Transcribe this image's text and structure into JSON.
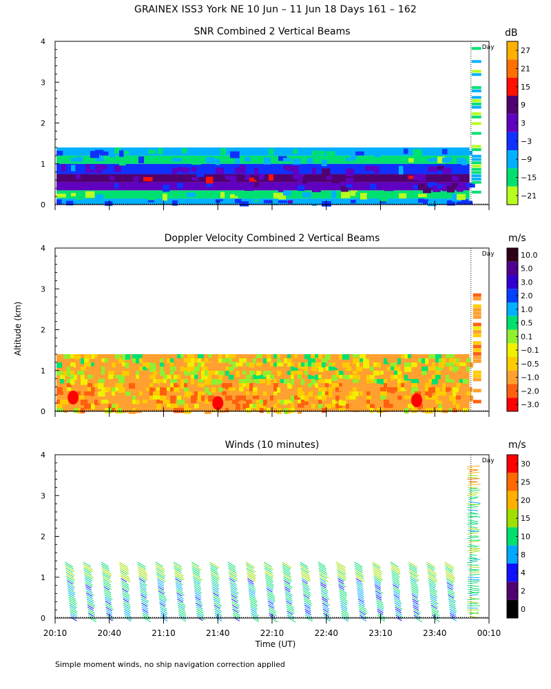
{
  "title": "GRAINEX ISS3 York NE  10 Jun – 11 Jun 18 Days 161 – 162",
  "footnote": "Simple moment winds, no ship navigation correction applied",
  "y_axis_label": "Altitude (km)",
  "x_axis_label": "Time (UT)",
  "day_marker_label": "Day",
  "colors": {
    "axis": "#000000"
  },
  "chart_data": [
    {
      "type": "heatmap",
      "title": "SNR Combined 2 Vertical Beams",
      "ylabel": "Altitude (km)",
      "ylim": [
        0,
        4
      ],
      "yticks": [
        "0",
        "1",
        "2",
        "3",
        "4"
      ],
      "xlim": [
        "20:10",
        "00:10"
      ],
      "day_marker_time": "00:00",
      "colorbar": {
        "unit": "dB",
        "labels": [
          "27",
          "21",
          "15",
          "9",
          "3",
          "−3",
          "−9",
          "−15",
          "−21"
        ],
        "colors": [
          "#ffb000",
          "#ff7000",
          "#ff1000",
          "#500070",
          "#6000c0",
          "#1030ff",
          "#00b0ff",
          "#00e070",
          "#b8ff20"
        ]
      },
      "data_top_km": 1.4,
      "layers_km": [
        {
          "from": 0.0,
          "to": 0.15,
          "db": -6
        },
        {
          "from": 0.15,
          "to": 0.35,
          "db": -15
        },
        {
          "from": 0.35,
          "to": 0.55,
          "db": 3
        },
        {
          "from": 0.55,
          "to": 0.75,
          "db": 7
        },
        {
          "from": 0.75,
          "to": 1.0,
          "db": 0
        },
        {
          "from": 1.0,
          "to": 1.2,
          "db": -12
        },
        {
          "from": 1.2,
          "to": 1.4,
          "db": -8
        }
      ]
    },
    {
      "type": "heatmap",
      "title": "Doppler Velocity Combined 2 Vertical Beams",
      "ylabel": "Altitude (km)",
      "ylim": [
        0,
        4
      ],
      "yticks": [
        "0",
        "1",
        "2",
        "3",
        "4"
      ],
      "xlim": [
        "20:10",
        "00:10"
      ],
      "day_marker_time": "00:00",
      "colorbar": {
        "unit": "m/s",
        "labels": [
          "10.0",
          "5.0",
          "3.0",
          "2.0",
          "1.0",
          "0.5",
          "0.1",
          "−0.1",
          "−0.5",
          "−1.0",
          "−2.0",
          "−3.0"
        ],
        "colors": [
          "#300018",
          "#500090",
          "#3000d0",
          "#0040ff",
          "#00b0ff",
          "#00e070",
          "#90f030",
          "#f0f000",
          "#ffcc00",
          "#ffa030",
          "#ff6010",
          "#ff0000"
        ]
      },
      "data_top_km": 1.4,
      "dominant_velocity_ms": -0.6
    },
    {
      "type": "vector",
      "title": "Winds (10 minutes)",
      "ylabel": "Altitude (km)",
      "ylim": [
        0,
        4
      ],
      "yticks": [
        "0",
        "1",
        "2",
        "3",
        "4"
      ],
      "xlabel": "Time (UT)",
      "xticks": [
        "20:10",
        "20:40",
        "21:10",
        "21:40",
        "22:10",
        "22:40",
        "23:10",
        "23:40",
        "00:10"
      ],
      "xlim": [
        "20:10",
        "00:10"
      ],
      "day_marker_time": "00:00",
      "colorbar": {
        "unit": "m/s",
        "labels": [
          "30",
          "25",
          "20",
          "15",
          "10",
          "8",
          "4",
          "2",
          "0"
        ],
        "colors": [
          "#ff0000",
          "#ff6a00",
          "#ffb000",
          "#a0e000",
          "#00e070",
          "#00a8ff",
          "#1010ff",
          "#500070",
          "#000000"
        ]
      },
      "profile_times": [
        "20:20",
        "20:30",
        "20:40",
        "20:50",
        "21:00",
        "21:10",
        "21:20",
        "21:30",
        "21:40",
        "21:50",
        "22:00",
        "22:10",
        "22:20",
        "22:30",
        "22:40",
        "22:50",
        "23:00",
        "23:10",
        "23:20",
        "23:30",
        "23:40",
        "23:50"
      ],
      "profile_top_km": 1.4,
      "typical_speed_ms": 12
    }
  ]
}
